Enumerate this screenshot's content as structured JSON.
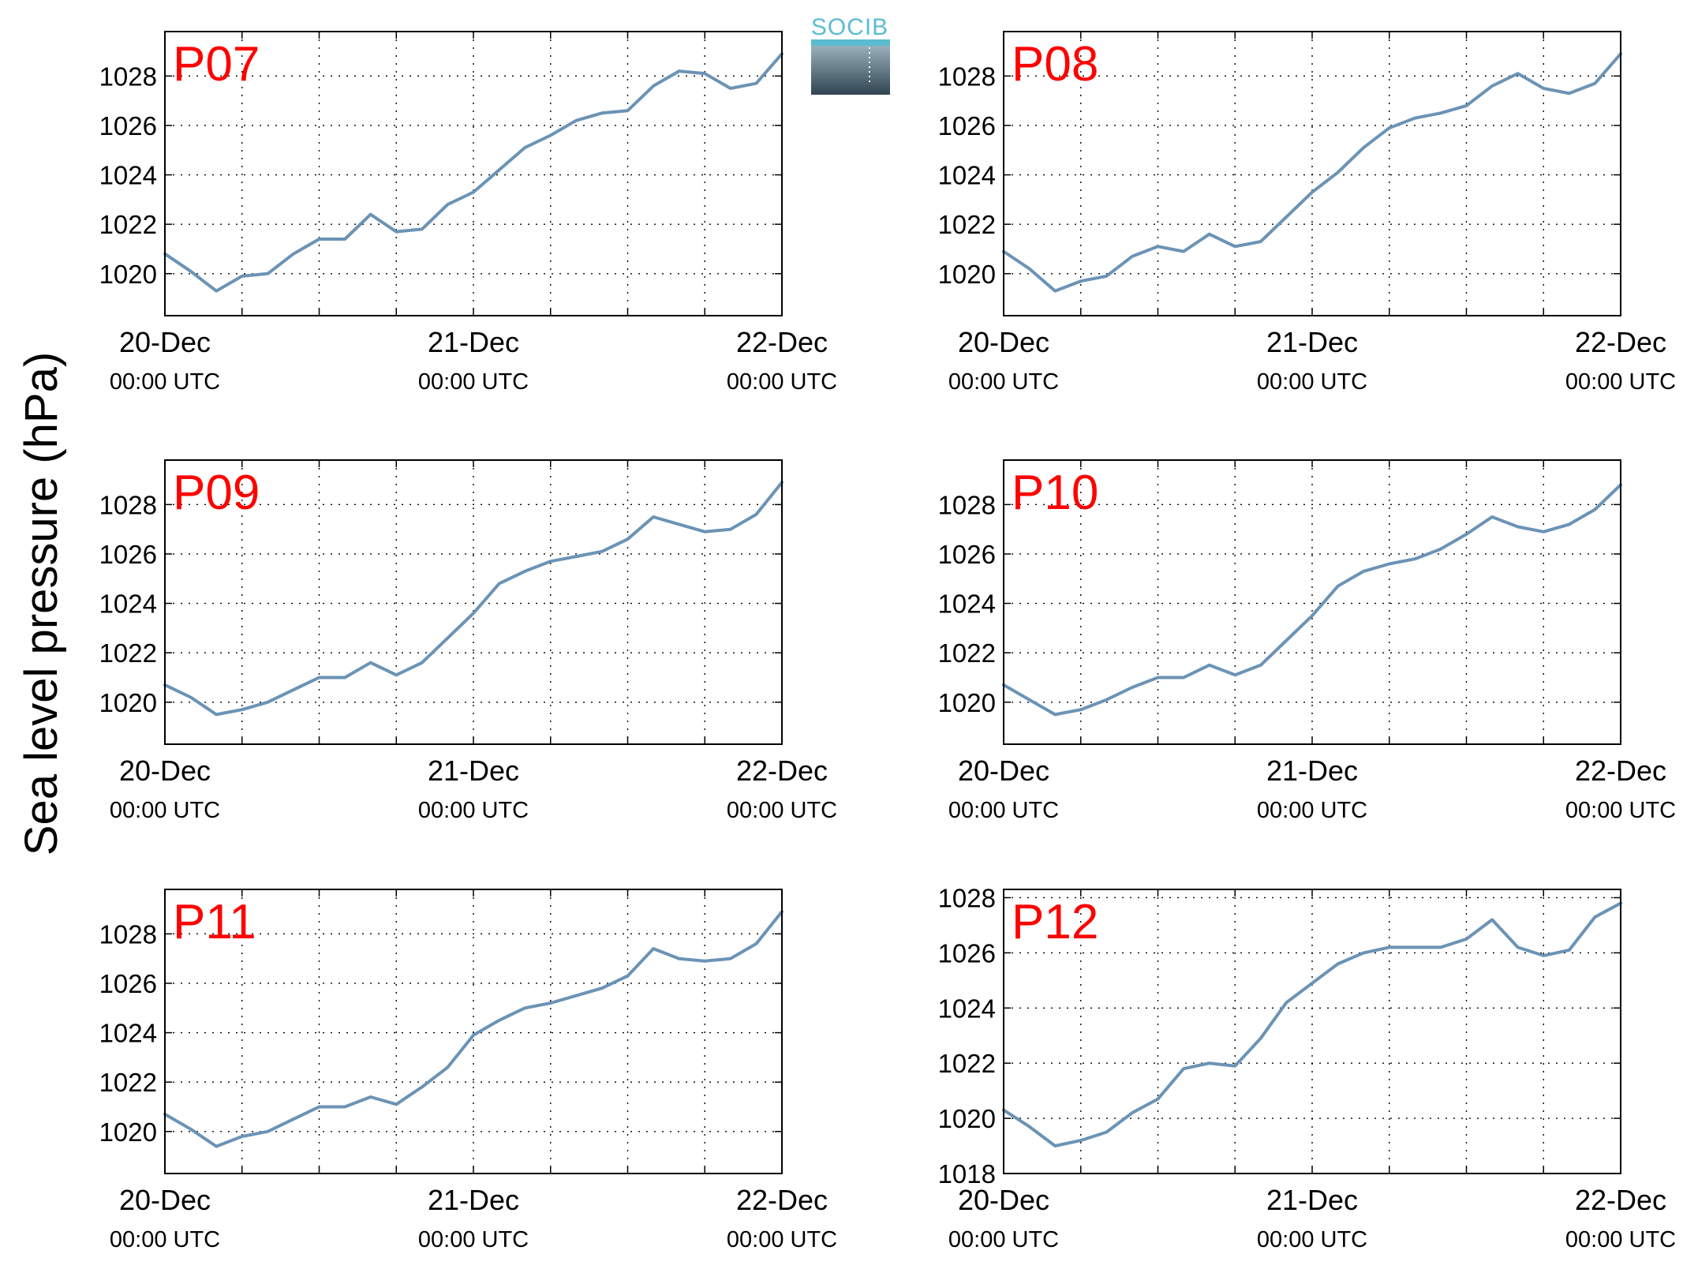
{
  "figure": {
    "ylabel": "Sea level pressure (hPa)",
    "logo": {
      "text": "SOCIB",
      "colors": [
        "#5bbcd0",
        "#2f4450"
      ]
    },
    "line_color": "#6b93b5",
    "grid": "dotted"
  },
  "chart_data": [
    {
      "type": "line",
      "name": "P07",
      "x_ticks": [
        {
          "date": "20-Dec",
          "time": "00:00 UTC"
        },
        {
          "date": "21-Dec",
          "time": "00:00 UTC"
        },
        {
          "date": "22-Dec",
          "time": "00:00 UTC"
        }
      ],
      "xlim": [
        "2020-12-20 00:00",
        "2020-12-22 00:00"
      ],
      "ylim": [
        1018.3,
        1029.8
      ],
      "yticks": [
        1020,
        1022,
        1024,
        1026,
        1028
      ],
      "x_hours": [
        0,
        2,
        4,
        6,
        8,
        10,
        12,
        14,
        16,
        18,
        20,
        22,
        24,
        26,
        28,
        30,
        32,
        34,
        36,
        38,
        40,
        42,
        44,
        46,
        48
      ],
      "values": [
        1020.8,
        1020.1,
        1019.3,
        1019.9,
        1020.0,
        1020.8,
        1021.4,
        1021.4,
        1022.4,
        1021.7,
        1021.8,
        1022.8,
        1023.3,
        1024.2,
        1025.1,
        1025.6,
        1026.2,
        1026.5,
        1026.6,
        1027.6,
        1028.2,
        1028.1,
        1027.5,
        1027.7,
        1028.9
      ]
    },
    {
      "type": "line",
      "name": "P08",
      "x_ticks": [
        {
          "date": "20-Dec",
          "time": "00:00 UTC"
        },
        {
          "date": "21-Dec",
          "time": "00:00 UTC"
        },
        {
          "date": "22-Dec",
          "time": "00:00 UTC"
        }
      ],
      "xlim": [
        "2020-12-20 00:00",
        "2020-12-22 00:00"
      ],
      "ylim": [
        1018.3,
        1029.8
      ],
      "yticks": [
        1020,
        1022,
        1024,
        1026,
        1028
      ],
      "x_hours": [
        0,
        2,
        4,
        6,
        8,
        10,
        12,
        14,
        16,
        18,
        20,
        22,
        24,
        26,
        28,
        30,
        32,
        34,
        36,
        38,
        40,
        42,
        44,
        46,
        48
      ],
      "values": [
        1020.9,
        1020.2,
        1019.3,
        1019.7,
        1019.9,
        1020.7,
        1021.1,
        1020.9,
        1021.6,
        1021.1,
        1021.3,
        1022.3,
        1023.3,
        1024.1,
        1025.1,
        1025.9,
        1026.3,
        1026.5,
        1026.8,
        1027.6,
        1028.1,
        1027.5,
        1027.3,
        1027.7,
        1028.9
      ]
    },
    {
      "type": "line",
      "name": "P09",
      "x_ticks": [
        {
          "date": "20-Dec",
          "time": "00:00 UTC"
        },
        {
          "date": "21-Dec",
          "time": "00:00 UTC"
        },
        {
          "date": "22-Dec",
          "time": "00:00 UTC"
        }
      ],
      "xlim": [
        "2020-12-20 00:00",
        "2020-12-22 00:00"
      ],
      "ylim": [
        1018.3,
        1029.8
      ],
      "yticks": [
        1020,
        1022,
        1024,
        1026,
        1028
      ],
      "x_hours": [
        0,
        2,
        4,
        6,
        8,
        10,
        12,
        14,
        16,
        18,
        20,
        22,
        24,
        26,
        28,
        30,
        32,
        34,
        36,
        38,
        40,
        42,
        44,
        46,
        48
      ],
      "values": [
        1020.7,
        1020.2,
        1019.5,
        1019.7,
        1020.0,
        1020.5,
        1021.0,
        1021.0,
        1021.6,
        1021.1,
        1021.6,
        1022.6,
        1023.6,
        1024.8,
        1025.3,
        1025.7,
        1025.9,
        1026.1,
        1026.6,
        1027.5,
        1027.2,
        1026.9,
        1027.0,
        1027.6,
        1028.9
      ]
    },
    {
      "type": "line",
      "name": "P10",
      "x_ticks": [
        {
          "date": "20-Dec",
          "time": "00:00 UTC"
        },
        {
          "date": "21-Dec",
          "time": "00:00 UTC"
        },
        {
          "date": "22-Dec",
          "time": "00:00 UTC"
        }
      ],
      "xlim": [
        "2020-12-20 00:00",
        "2020-12-22 00:00"
      ],
      "ylim": [
        1018.3,
        1029.8
      ],
      "yticks": [
        1020,
        1022,
        1024,
        1026,
        1028
      ],
      "x_hours": [
        0,
        2,
        4,
        6,
        8,
        10,
        12,
        14,
        16,
        18,
        20,
        22,
        24,
        26,
        28,
        30,
        32,
        34,
        36,
        38,
        40,
        42,
        44,
        46,
        48
      ],
      "values": [
        1020.7,
        1020.1,
        1019.5,
        1019.7,
        1020.1,
        1020.6,
        1021.0,
        1021.0,
        1021.5,
        1021.1,
        1021.5,
        1022.5,
        1023.5,
        1024.7,
        1025.3,
        1025.6,
        1025.8,
        1026.2,
        1026.8,
        1027.5,
        1027.1,
        1026.9,
        1027.2,
        1027.8,
        1028.8
      ]
    },
    {
      "type": "line",
      "name": "P11",
      "x_ticks": [
        {
          "date": "20-Dec",
          "time": "00:00 UTC"
        },
        {
          "date": "21-Dec",
          "time": "00:00 UTC"
        },
        {
          "date": "22-Dec",
          "time": "00:00 UTC"
        }
      ],
      "xlim": [
        "2020-12-20 00:00",
        "2020-12-22 00:00"
      ],
      "ylim": [
        1018.3,
        1029.8
      ],
      "yticks": [
        1020,
        1022,
        1024,
        1026,
        1028
      ],
      "x_hours": [
        0,
        2,
        4,
        6,
        8,
        10,
        12,
        14,
        16,
        18,
        20,
        22,
        24,
        26,
        28,
        30,
        32,
        34,
        36,
        38,
        40,
        42,
        44,
        46,
        48
      ],
      "values": [
        1020.7,
        1020.1,
        1019.4,
        1019.8,
        1020.0,
        1020.5,
        1021.0,
        1021.0,
        1021.4,
        1021.1,
        1021.8,
        1022.6,
        1023.9,
        1024.5,
        1025.0,
        1025.2,
        1025.5,
        1025.8,
        1026.3,
        1027.4,
        1027.0,
        1026.9,
        1027.0,
        1027.6,
        1028.9
      ]
    },
    {
      "type": "line",
      "name": "P12",
      "x_ticks": [
        {
          "date": "20-Dec",
          "time": "00:00 UTC"
        },
        {
          "date": "21-Dec",
          "time": "00:00 UTC"
        },
        {
          "date": "22-Dec",
          "time": "00:00 UTC"
        }
      ],
      "xlim": [
        "2020-12-20 00:00",
        "2020-12-22 00:00"
      ],
      "ylim": [
        1018,
        1028.3
      ],
      "yticks": [
        1018,
        1020,
        1022,
        1024,
        1026,
        1028
      ],
      "x_hours": [
        0,
        2,
        4,
        6,
        8,
        10,
        12,
        14,
        16,
        18,
        20,
        22,
        24,
        26,
        28,
        30,
        32,
        34,
        36,
        38,
        40,
        42,
        44,
        46,
        48
      ],
      "values": [
        1020.3,
        1019.7,
        1019.0,
        1019.2,
        1019.5,
        1020.2,
        1020.7,
        1021.8,
        1022.0,
        1021.9,
        1022.9,
        1024.2,
        1024.9,
        1025.6,
        1026.0,
        1026.2,
        1026.2,
        1026.2,
        1026.5,
        1027.2,
        1026.2,
        1025.9,
        1026.1,
        1027.3,
        1027.8
      ]
    }
  ]
}
